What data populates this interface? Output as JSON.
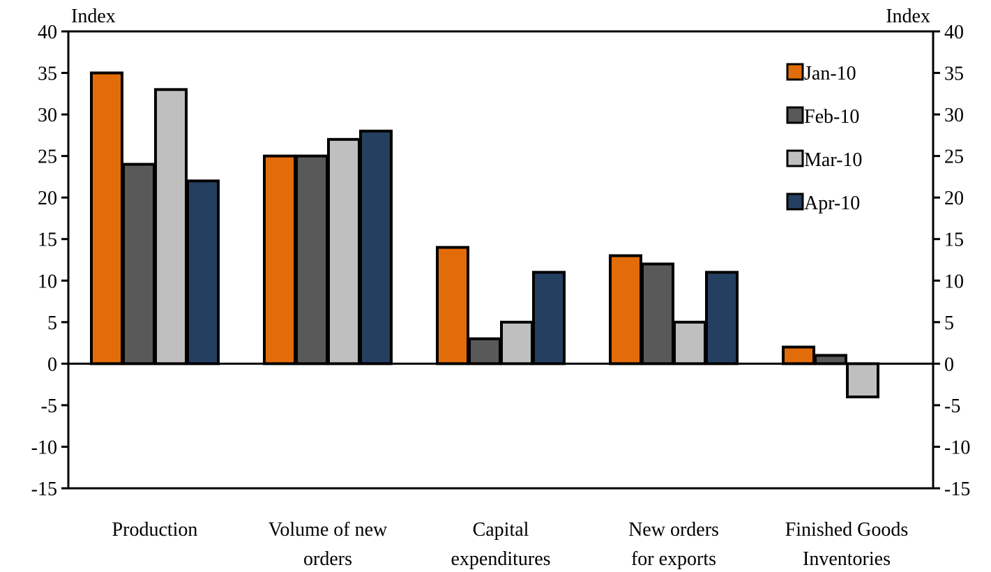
{
  "chart_data": {
    "type": "bar",
    "left_axis_unit": "Index",
    "right_axis_unit": "Index",
    "ylim": [
      -15,
      40
    ],
    "y_ticks": [
      40,
      35,
      30,
      25,
      20,
      15,
      10,
      5,
      0,
      -5,
      -10,
      -15
    ],
    "categories": [
      [
        "Production"
      ],
      [
        "Volume of new",
        "orders"
      ],
      [
        "Capital",
        "expenditures"
      ],
      [
        "New orders",
        "for exports"
      ],
      [
        "Finished Goods",
        "Inventories"
      ]
    ],
    "series": [
      {
        "name": "Jan-10",
        "color": "#E36C0A",
        "values": [
          35,
          25,
          14,
          13,
          2
        ]
      },
      {
        "name": "Feb-10",
        "color": "#595959",
        "values": [
          24,
          25,
          3,
          12,
          1
        ]
      },
      {
        "name": "Mar-10",
        "color": "#BFBFBF",
        "values": [
          33,
          27,
          5,
          5,
          -4
        ]
      },
      {
        "name": "Apr-10",
        "color": "#243F60",
        "values": [
          22,
          28,
          11,
          11,
          null
        ]
      }
    ],
    "legend_position": "top-right",
    "grid": false
  }
}
